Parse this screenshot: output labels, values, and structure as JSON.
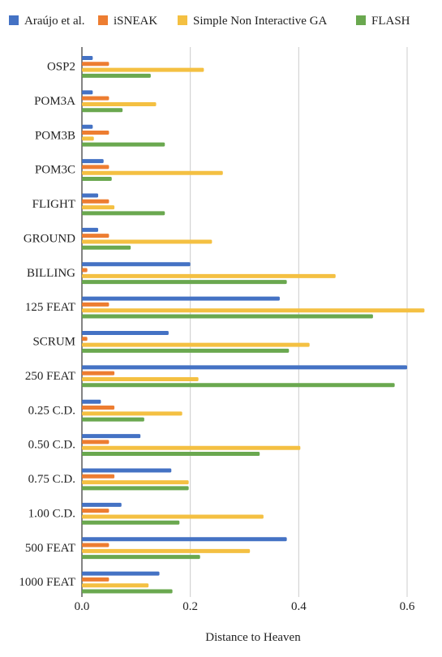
{
  "chart_data": {
    "type": "bar",
    "orientation": "horizontal",
    "categories": [
      "OSP2",
      "POM3A",
      "POM3B",
      "POM3C",
      "FLIGHT",
      "GROUND",
      "BILLING",
      "125 FEAT",
      "SCRUM",
      "250 FEAT",
      "0.25 C.D.",
      "0.50 C.D.",
      "0.75 C.D.",
      "1.00 C.D.",
      "500 FEAT",
      "1000 FEAT"
    ],
    "series": [
      {
        "name": "Araújo et al.",
        "color": "#4472c4",
        "values": [
          0.02,
          0.02,
          0.02,
          0.04,
          0.03,
          0.03,
          0.2,
          0.365,
          0.16,
          0.6,
          0.035,
          0.108,
          0.165,
          0.073,
          0.378,
          0.143
        ]
      },
      {
        "name": "iSNEAK",
        "color": "#ed7d31",
        "values": [
          0.05,
          0.05,
          0.05,
          0.05,
          0.05,
          0.05,
          0.01,
          0.05,
          0.01,
          0.06,
          0.06,
          0.05,
          0.06,
          0.05,
          0.05,
          0.05
        ]
      },
      {
        "name": "Simple Non Interactive GA",
        "color": "#f4c042",
        "values": [
          0.225,
          0.137,
          0.022,
          0.26,
          0.06,
          0.24,
          0.468,
          0.632,
          0.42,
          0.215,
          0.185,
          0.403,
          0.197,
          0.335,
          0.31,
          0.123
        ]
      },
      {
        "name": "FLASH",
        "color": "#6aa84f",
        "values": [
          0.127,
          0.075,
          0.153,
          0.055,
          0.153,
          0.09,
          0.378,
          0.537,
          0.382,
          0.577,
          0.115,
          0.328,
          0.197,
          0.18,
          0.218,
          0.167
        ]
      }
    ],
    "xlim": [
      0,
      0.63
    ],
    "xticks": [
      "0.0",
      "0.2",
      "0.4",
      "0.6"
    ],
    "xtick_values": [
      0,
      0.2,
      0.4,
      0.6
    ],
    "xlabel": "Distance to Heaven",
    "ylabel": "",
    "title": "",
    "grid": "vertical",
    "legend_position": "top"
  }
}
